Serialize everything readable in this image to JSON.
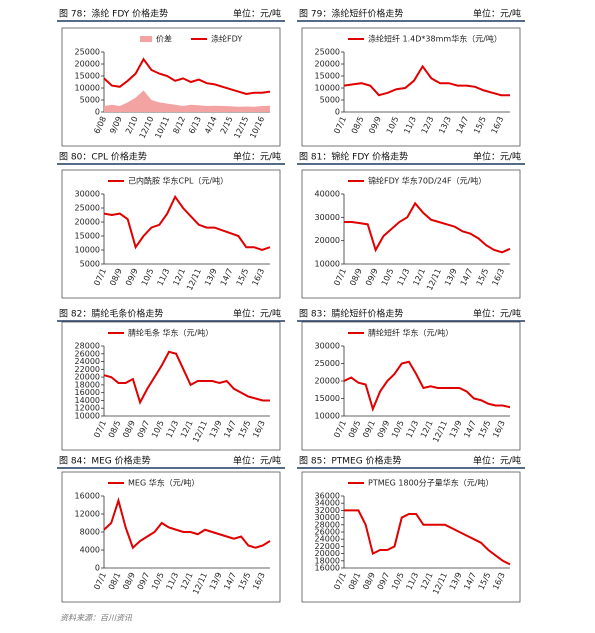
{
  "chart_data": [
    {
      "type": "line",
      "figure_title": "图 78：涤纶 FDY 价格走势",
      "unit": "单位：元/吨",
      "categories": [
        "6/08",
        null,
        "9/09",
        null,
        "2/10",
        null,
        "12/10",
        null,
        "10/11",
        null,
        "8/12",
        null,
        "6/13",
        null,
        "4/14",
        null,
        "2/15",
        null,
        "12/15",
        null,
        "10/16",
        null
      ],
      "series": [
        {
          "name": "价差",
          "type": "area",
          "color": "#f4a3a3",
          "values": [
            2500,
            3000,
            2500,
            4000,
            6000,
            9000,
            5000,
            4000,
            3500,
            3000,
            2500,
            3000,
            2800,
            2500,
            2600,
            2500,
            2400,
            2200,
            2300,
            2200,
            2500,
            2600
          ]
        },
        {
          "name": "涤纶FDY",
          "type": "line",
          "color": "#e00000",
          "values": [
            14000,
            11000,
            10500,
            13000,
            16000,
            22000,
            17500,
            16000,
            15000,
            13000,
            14000,
            12500,
            13500,
            12000,
            11500,
            10500,
            9500,
            8500,
            7500,
            8000,
            8000,
            8500
          ]
        }
      ],
      "ylim": [
        0,
        25000
      ],
      "yticks": [
        0,
        5000,
        10000,
        15000,
        20000,
        25000
      ]
    },
    {
      "type": "line",
      "figure_title": "图 79：涤纶短纤价格走势",
      "unit": "单位：元/吨",
      "categories": [
        "07/1",
        null,
        "08/5",
        null,
        "09/9",
        null,
        "10/5",
        null,
        "11/3",
        null,
        "12/3",
        null,
        "13/3",
        null,
        "14/7",
        null,
        "15/5",
        null,
        "16/3",
        null
      ],
      "series": [
        {
          "name": "涤纶短纤 1.4D*38mm华东（元/吨）",
          "type": "line",
          "color": "#e00000",
          "values": [
            11000,
            11500,
            12000,
            11000,
            7000,
            8000,
            9500,
            10000,
            13000,
            19000,
            14000,
            12000,
            12000,
            11000,
            11000,
            10500,
            9000,
            8000,
            7000,
            7000
          ]
        }
      ],
      "ylim": [
        0,
        25000
      ],
      "yticks": [
        0,
        5000,
        10000,
        15000,
        20000,
        25000
      ]
    },
    {
      "type": "line",
      "figure_title": "图 80：CPL 价格走势",
      "unit": "单位：元/吨",
      "categories": [
        "07/1",
        null,
        "08/9",
        null,
        "09/9",
        null,
        "10/5",
        null,
        "11/3",
        null,
        "12/1",
        null,
        "12/11",
        null,
        "13/9",
        null,
        "14/7",
        null,
        "15/5",
        null,
        "16/3",
        null
      ],
      "series": [
        {
          "name": "己内酰胺 华东CPL（元/吨）",
          "type": "line",
          "color": "#e00000",
          "values": [
            23000,
            22500,
            23000,
            21000,
            11000,
            15000,
            18000,
            19000,
            23000,
            29000,
            25000,
            22000,
            19000,
            18000,
            18000,
            17000,
            16000,
            15000,
            11000,
            11000,
            10000,
            11000
          ]
        }
      ],
      "ylim": [
        5000,
        30000
      ],
      "yticks": [
        5000,
        10000,
        15000,
        20000,
        25000,
        30000
      ]
    },
    {
      "type": "line",
      "figure_title": "图 81：锦纶 FDY 价格走势",
      "unit": "单位：元/吨",
      "categories": [
        "07/1",
        null,
        "08/9",
        null,
        "09/9",
        null,
        "10/5",
        null,
        "11/3",
        null,
        "12/1",
        null,
        "12/11",
        null,
        "13/9",
        null,
        "14/7",
        null,
        "15/5",
        null,
        "16/3",
        null
      ],
      "series": [
        {
          "name": "锦纶FDY 华东70D/24F（元/吨）",
          "type": "line",
          "color": "#e00000",
          "values": [
            28000,
            28000,
            27500,
            27000,
            16000,
            22000,
            25000,
            28000,
            30000,
            36000,
            32000,
            29000,
            28000,
            27000,
            26000,
            24000,
            23000,
            21000,
            18000,
            16000,
            15000,
            16500
          ]
        }
      ],
      "ylim": [
        10000,
        40000
      ],
      "yticks": [
        10000,
        20000,
        30000,
        40000
      ]
    },
    {
      "type": "line",
      "figure_title": "图 82：腈纶毛条价格走势",
      "unit": "单位：元/吨",
      "categories": [
        "07/1",
        null,
        "08/5",
        null,
        "08/9",
        null,
        "09/7",
        null,
        "10/5",
        null,
        "11/3",
        null,
        "12/1",
        null,
        "12/11",
        null,
        "13/9",
        null,
        "14/7",
        null,
        "15/5",
        null,
        "16/3",
        null
      ],
      "series": [
        {
          "name": "腈纶毛条 华东（元/吨）",
          "type": "line",
          "color": "#e00000",
          "values": [
            20500,
            20000,
            18500,
            18500,
            19500,
            13500,
            17000,
            20000,
            23000,
            26500,
            26000,
            22000,
            18000,
            19000,
            19000,
            19000,
            18500,
            19000,
            17000,
            16000,
            15000,
            14500,
            14000,
            14000
          ]
        }
      ],
      "ylim": [
        10000,
        28000
      ],
      "yticks": [
        10000,
        12000,
        14000,
        16000,
        18000,
        20000,
        22000,
        24000,
        26000,
        28000
      ]
    },
    {
      "type": "line",
      "figure_title": "图 83：腈纶短纤价格走势",
      "unit": "单位：元/吨",
      "categories": [
        "07/1",
        null,
        "08/5",
        null,
        "09/1",
        null,
        "09/9",
        null,
        "10/5",
        null,
        "11/3",
        null,
        "12/1",
        null,
        "12/11",
        null,
        "13/9",
        null,
        "14/7",
        null,
        "15/5",
        null,
        "16/3",
        null
      ],
      "series": [
        {
          "name": "腈纶短纤 华东（元/吨）",
          "type": "line",
          "color": "#e00000",
          "values": [
            20000,
            21000,
            19500,
            19000,
            12000,
            17000,
            20000,
            22000,
            25000,
            25500,
            22000,
            18000,
            18500,
            18000,
            18000,
            18000,
            18000,
            17000,
            15000,
            14500,
            13500,
            13000,
            13000,
            12500
          ]
        }
      ],
      "ylim": [
        10000,
        30000
      ],
      "yticks": [
        10000,
        15000,
        20000,
        25000,
        30000
      ]
    },
    {
      "type": "line",
      "figure_title": "图 84：MEG 价格走势",
      "unit": "单位：元/吨",
      "categories": [
        "07/1",
        null,
        "08/1",
        null,
        "08/9",
        null,
        "09/7",
        null,
        "10/5",
        null,
        "11/3",
        null,
        "12/1",
        null,
        "12/11",
        null,
        "13/9",
        null,
        "14/7",
        null,
        "15/5",
        null,
        "16/3",
        null
      ],
      "series": [
        {
          "name": "MEG 华东（元/吨）",
          "type": "line",
          "color": "#e00000",
          "values": [
            8500,
            10000,
            15000,
            9000,
            4500,
            6000,
            7000,
            8000,
            10000,
            9000,
            8500,
            8000,
            8000,
            7500,
            8500,
            8000,
            7500,
            7000,
            6500,
            7000,
            5000,
            4500,
            5000,
            6000
          ]
        }
      ],
      "ylim": [
        0,
        16000
      ],
      "yticks": [
        0,
        4000,
        8000,
        12000,
        16000
      ]
    },
    {
      "type": "line",
      "figure_title": "图 85：PTMEG 价格走势",
      "unit": "单位：元/吨",
      "categories": [
        "07/1",
        null,
        "08/1",
        null,
        "08/9",
        null,
        "09/7",
        null,
        "10/5",
        null,
        "11/3",
        null,
        "12/1",
        null,
        "12/11",
        null,
        "13/9",
        null,
        "14/7",
        null,
        "15/5",
        null,
        "16/3",
        null
      ],
      "series": [
        {
          "name": "PTMEG 1800分子量华东（元/吨）",
          "type": "line",
          "color": "#e00000",
          "values": [
            32000,
            32000,
            32000,
            28000,
            20000,
            21000,
            21000,
            22000,
            30000,
            31000,
            31000,
            28000,
            28000,
            28000,
            28000,
            27000,
            26000,
            25000,
            24000,
            23000,
            21000,
            19500,
            18000,
            17000
          ]
        }
      ],
      "ylim": [
        16000,
        36000
      ],
      "yticks": [
        16000,
        18000,
        20000,
        22000,
        24000,
        26000,
        28000,
        30000,
        32000,
        34000,
        36000
      ]
    }
  ],
  "source": "资料来源：百川资讯"
}
